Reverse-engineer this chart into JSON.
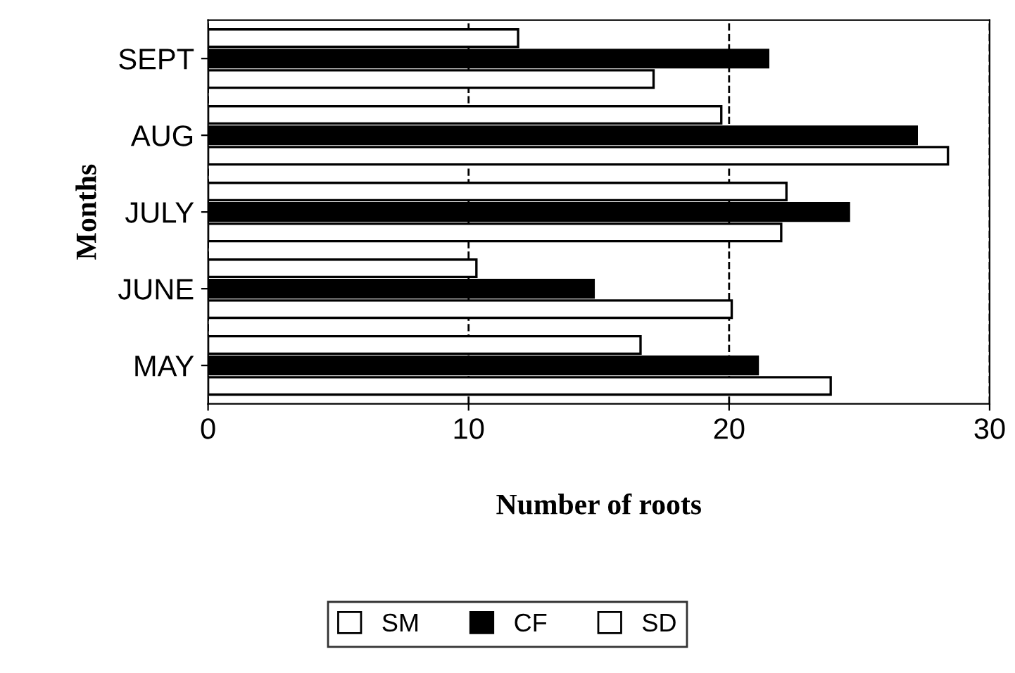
{
  "chart_data": {
    "type": "bar",
    "orientation": "horizontal",
    "xlabel": "Number of roots",
    "ylabel": "Months",
    "categories": [
      "SEPT",
      "AUG",
      "JULY",
      "JUNE",
      "MAY"
    ],
    "series": [
      {
        "name": "SM",
        "color": "#ffffff",
        "values": [
          11.9,
          19.7,
          22.2,
          10.3,
          16.6
        ]
      },
      {
        "name": "CF",
        "color": "#000000",
        "values": [
          21.5,
          27.2,
          24.6,
          14.8,
          21.1
        ]
      },
      {
        "name": "SD",
        "color": "#ffffff",
        "values": [
          17.1,
          28.4,
          22.0,
          20.1,
          23.9
        ]
      }
    ],
    "xlim": [
      0,
      30
    ],
    "xticks": [
      0,
      10,
      20,
      30
    ],
    "grid": "x",
    "legend": "bottom"
  }
}
